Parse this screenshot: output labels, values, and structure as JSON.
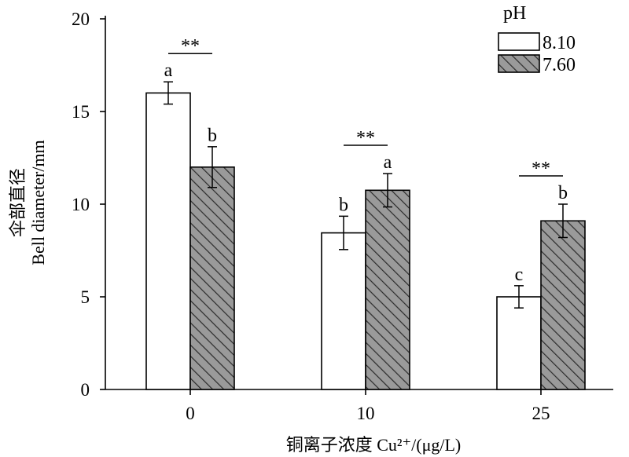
{
  "chart_data": {
    "type": "bar",
    "title": "",
    "xlabel": "铜离子浓度 Cu²⁺/(μg/L)",
    "ylabel_cn": "伞部直径",
    "ylabel_en": "Bell diameter/mm",
    "categories": [
      "0",
      "10",
      "25"
    ],
    "ylim": [
      0,
      20
    ],
    "yticks": [
      "0",
      "5",
      "10",
      "15",
      "20"
    ],
    "legend_title": "pH",
    "legend_position": "top-right",
    "series": [
      {
        "name": "8.10",
        "fill": "#ffffff",
        "pattern": "none",
        "values": [
          16.0,
          8.45,
          5.0
        ],
        "errors": [
          0.6,
          0.9,
          0.6
        ],
        "letters": [
          "a",
          "b",
          "c"
        ]
      },
      {
        "name": "7.60",
        "fill": "#9a9a9a",
        "pattern": "diagonal-hatch",
        "values": [
          12.0,
          10.75,
          9.1
        ],
        "errors": [
          1.1,
          0.9,
          0.9
        ],
        "letters": [
          "b",
          "a",
          "b"
        ]
      }
    ],
    "significance": [
      "**",
      "**",
      "**"
    ]
  }
}
